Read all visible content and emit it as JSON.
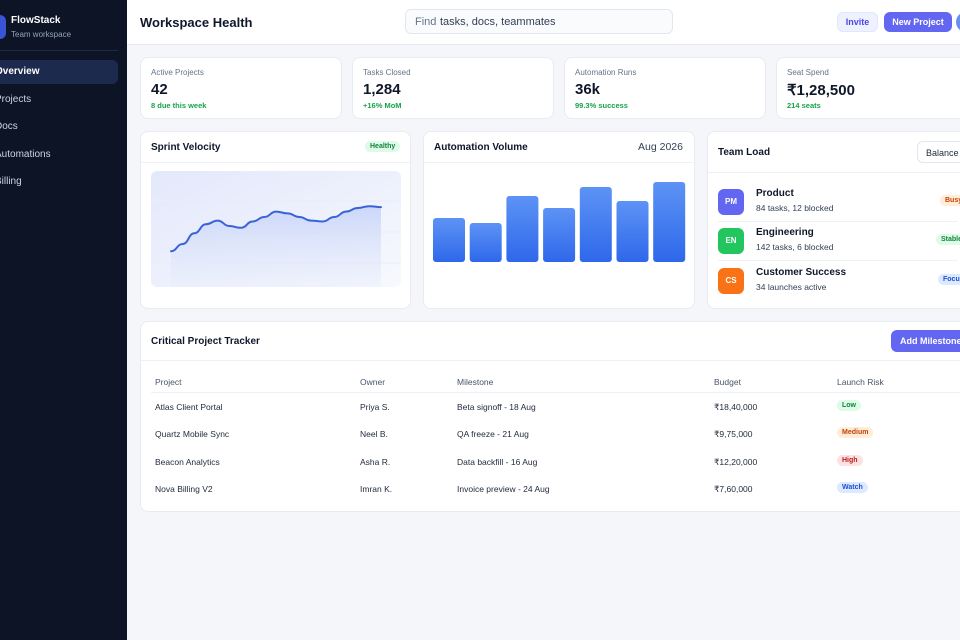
{
  "sidebar": {
    "brand_name": "FlowStack",
    "brand_sub": "Team workspace",
    "items": [
      {
        "label": "Overview"
      },
      {
        "label": "Projects"
      },
      {
        "label": "Docs"
      },
      {
        "label": "Automations"
      },
      {
        "label": "Billing"
      }
    ]
  },
  "header": {
    "title": "Workspace Health",
    "search_label": "Find",
    "search_placeholder": "tasks, docs, teammates",
    "invite_label": "Invite",
    "new_project_label": "New Project"
  },
  "stats": [
    {
      "label": "Active Projects",
      "value": "42",
      "sub": "8 due this week"
    },
    {
      "label": "Tasks Closed",
      "value": "1,284",
      "sub": "+16% MoM"
    },
    {
      "label": "Automation Runs",
      "value": "36k",
      "sub": "99.3% success"
    },
    {
      "label": "Seat Spend",
      "value": "₹1,28,500",
      "sub": "214 seats"
    }
  ],
  "sprint": {
    "title": "Sprint Velocity",
    "badge": "Healthy",
    "trend": [
      22,
      30,
      42,
      52,
      56,
      50,
      48,
      55,
      60,
      66,
      64,
      60,
      56,
      55,
      60,
      66,
      70,
      72,
      71
    ]
  },
  "automation": {
    "title": "Automation Volume",
    "period": "Aug 2026",
    "bars": [
      44,
      39,
      66,
      54,
      75,
      61,
      80
    ]
  },
  "team_load": {
    "title": "Team Load",
    "filter": "Balance",
    "teams": [
      {
        "initials": "PM",
        "name": "Product",
        "meta": "84 tasks, 12 blocked",
        "status": "Busy",
        "color": "#6366f1"
      },
      {
        "initials": "EN",
        "name": "Engineering",
        "meta": "142 tasks, 6 blocked",
        "status": "Stable",
        "color": "#22c55e"
      },
      {
        "initials": "CS",
        "name": "Customer Success",
        "meta": "34 launches active",
        "status": "Focus",
        "color": "#f97316"
      }
    ]
  },
  "tracker": {
    "title": "Critical Project Tracker",
    "add_label": "Add Milestone",
    "columns": [
      "Project",
      "Owner",
      "Milestone",
      "Budget",
      "Launch Risk"
    ],
    "rows": [
      {
        "project": "Atlas Client Portal",
        "owner": "Priya S.",
        "milestone": "Beta signoff - 18 Aug",
        "budget": "₹18,40,000",
        "risk": "Low"
      },
      {
        "project": "Quartz Mobile Sync",
        "owner": "Neel B.",
        "milestone": "QA freeze - 21 Aug",
        "budget": "₹9,75,000",
        "risk": "Medium"
      },
      {
        "project": "Beacon Analytics",
        "owner": "Asha R.",
        "milestone": "Data backfill - 16 Aug",
        "budget": "₹12,20,000",
        "risk": "High"
      },
      {
        "project": "Nova Billing V2",
        "owner": "Imran K.",
        "milestone": "Invoice preview - 24 Aug",
        "budget": "₹7,60,000",
        "risk": "Watch"
      }
    ]
  },
  "colors": {
    "accent": "#6366f1",
    "sidebar": "#0d1426",
    "bar": "#3b7bf0",
    "success": "#16a34a"
  }
}
